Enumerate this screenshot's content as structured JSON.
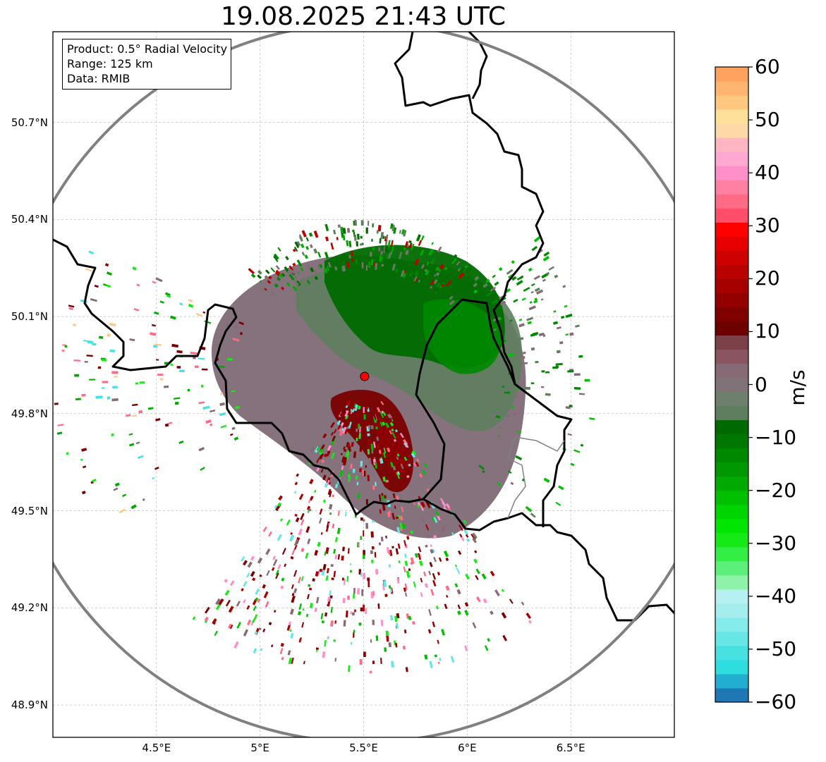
{
  "title": "19.08.2025 21:43 UTC",
  "info_box": {
    "lines": [
      "Product: 0.5° Radial Velocity",
      "Range: 125 km",
      "Data: RMIB"
    ]
  },
  "map": {
    "lon_range": [
      4.0,
      7.0
    ],
    "lat_range": [
      48.8,
      50.98
    ],
    "x_ticks": [
      "4.5°E",
      "5°E",
      "5.5°E",
      "6°E",
      "6.5°E"
    ],
    "x_tick_values": [
      4.5,
      5.0,
      5.5,
      6.0,
      6.5
    ],
    "y_ticks": [
      "50.7°N",
      "50.4°N",
      "50.1°N",
      "49.8°N",
      "49.5°N",
      "49.2°N",
      "48.9°N"
    ],
    "y_tick_values": [
      50.7,
      50.4,
      50.1,
      49.8,
      49.5,
      49.2,
      48.9
    ],
    "gridlines": true,
    "radar_site": {
      "lon": 5.505,
      "lat": 49.915,
      "color": "#ff0000"
    },
    "range_ring_km": 125,
    "range_ring_color": "#808080"
  },
  "colorbar": {
    "label": "m/s",
    "min": -60,
    "max": 60,
    "tick_labels": [
      "60",
      "50",
      "40",
      "30",
      "20",
      "10",
      "0",
      "−10",
      "−20",
      "−30",
      "−40",
      "−50",
      "−60"
    ],
    "tick_values": [
      60,
      50,
      40,
      30,
      20,
      10,
      0,
      -10,
      -20,
      -30,
      -40,
      -50,
      -60
    ],
    "colors_bottom_to_top": [
      "#1f77b4",
      "#22aed0",
      "#2edede",
      "#47e1e1",
      "#66e6e6",
      "#86ebeb",
      "#a4eeee",
      "#b6f0f0",
      "#8ef2a8",
      "#5cf07a",
      "#33ee44",
      "#16ea16",
      "#00e600",
      "#00d400",
      "#00c000",
      "#00aa00",
      "#009800",
      "#008800",
      "#007700",
      "#006a00",
      "#5e7e5e",
      "#6e7f6e",
      "#7f7377",
      "#866a75",
      "#8a5560",
      "#7c4048",
      "#6e0000",
      "#800000",
      "#940000",
      "#a60000",
      "#bb0000",
      "#cf0000",
      "#e60000",
      "#ff0000",
      "#ff4d6a",
      "#ff6a85",
      "#ff80a0",
      "#ff8fc8",
      "#ffa8d2",
      "#ffb6c1",
      "#ffd8a8",
      "#ffe09a",
      "#ffc880",
      "#ffb470",
      "#ffa25e"
    ]
  }
}
